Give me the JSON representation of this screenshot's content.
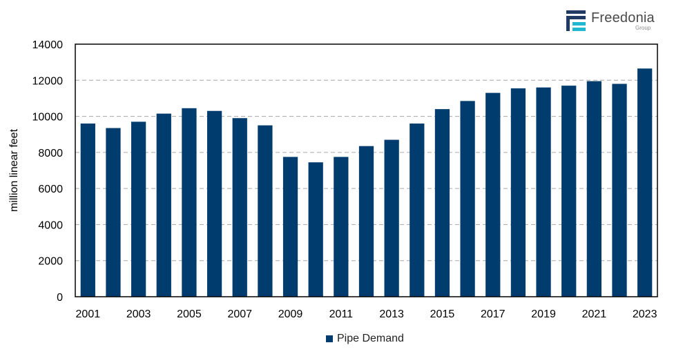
{
  "brand": {
    "name": "Freedonia",
    "sub": "Group",
    "colors": {
      "navy": "#1f3b63",
      "teal": "#1fb6cf"
    }
  },
  "chart_data": {
    "type": "bar",
    "title": "",
    "xlabel": "",
    "ylabel": "million linear feet",
    "ylim": [
      0,
      14000
    ],
    "yticks": [
      0,
      2000,
      4000,
      6000,
      8000,
      10000,
      12000,
      14000
    ],
    "grid": "horizontal dashed",
    "legend_position": "bottom",
    "categories": [
      "2001",
      "2002",
      "2003",
      "2004",
      "2005",
      "2006",
      "2007",
      "2008",
      "2009",
      "2010",
      "2011",
      "2012",
      "2013",
      "2014",
      "2015",
      "2016",
      "2017",
      "2018",
      "2019",
      "2020",
      "2021",
      "2022",
      "2023"
    ],
    "x_tick_labels": [
      "2001",
      "2003",
      "2005",
      "2007",
      "2009",
      "2011",
      "2013",
      "2015",
      "2017",
      "2019",
      "2021",
      "2023"
    ],
    "series": [
      {
        "name": "Pipe Demand",
        "color": "#003d6e",
        "values": [
          9600,
          9350,
          9700,
          10150,
          10450,
          10300,
          9900,
          9500,
          7750,
          7450,
          7750,
          8350,
          8700,
          9600,
          10400,
          10850,
          11300,
          11550,
          11600,
          11700,
          11950,
          11800,
          12650
        ]
      }
    ]
  }
}
